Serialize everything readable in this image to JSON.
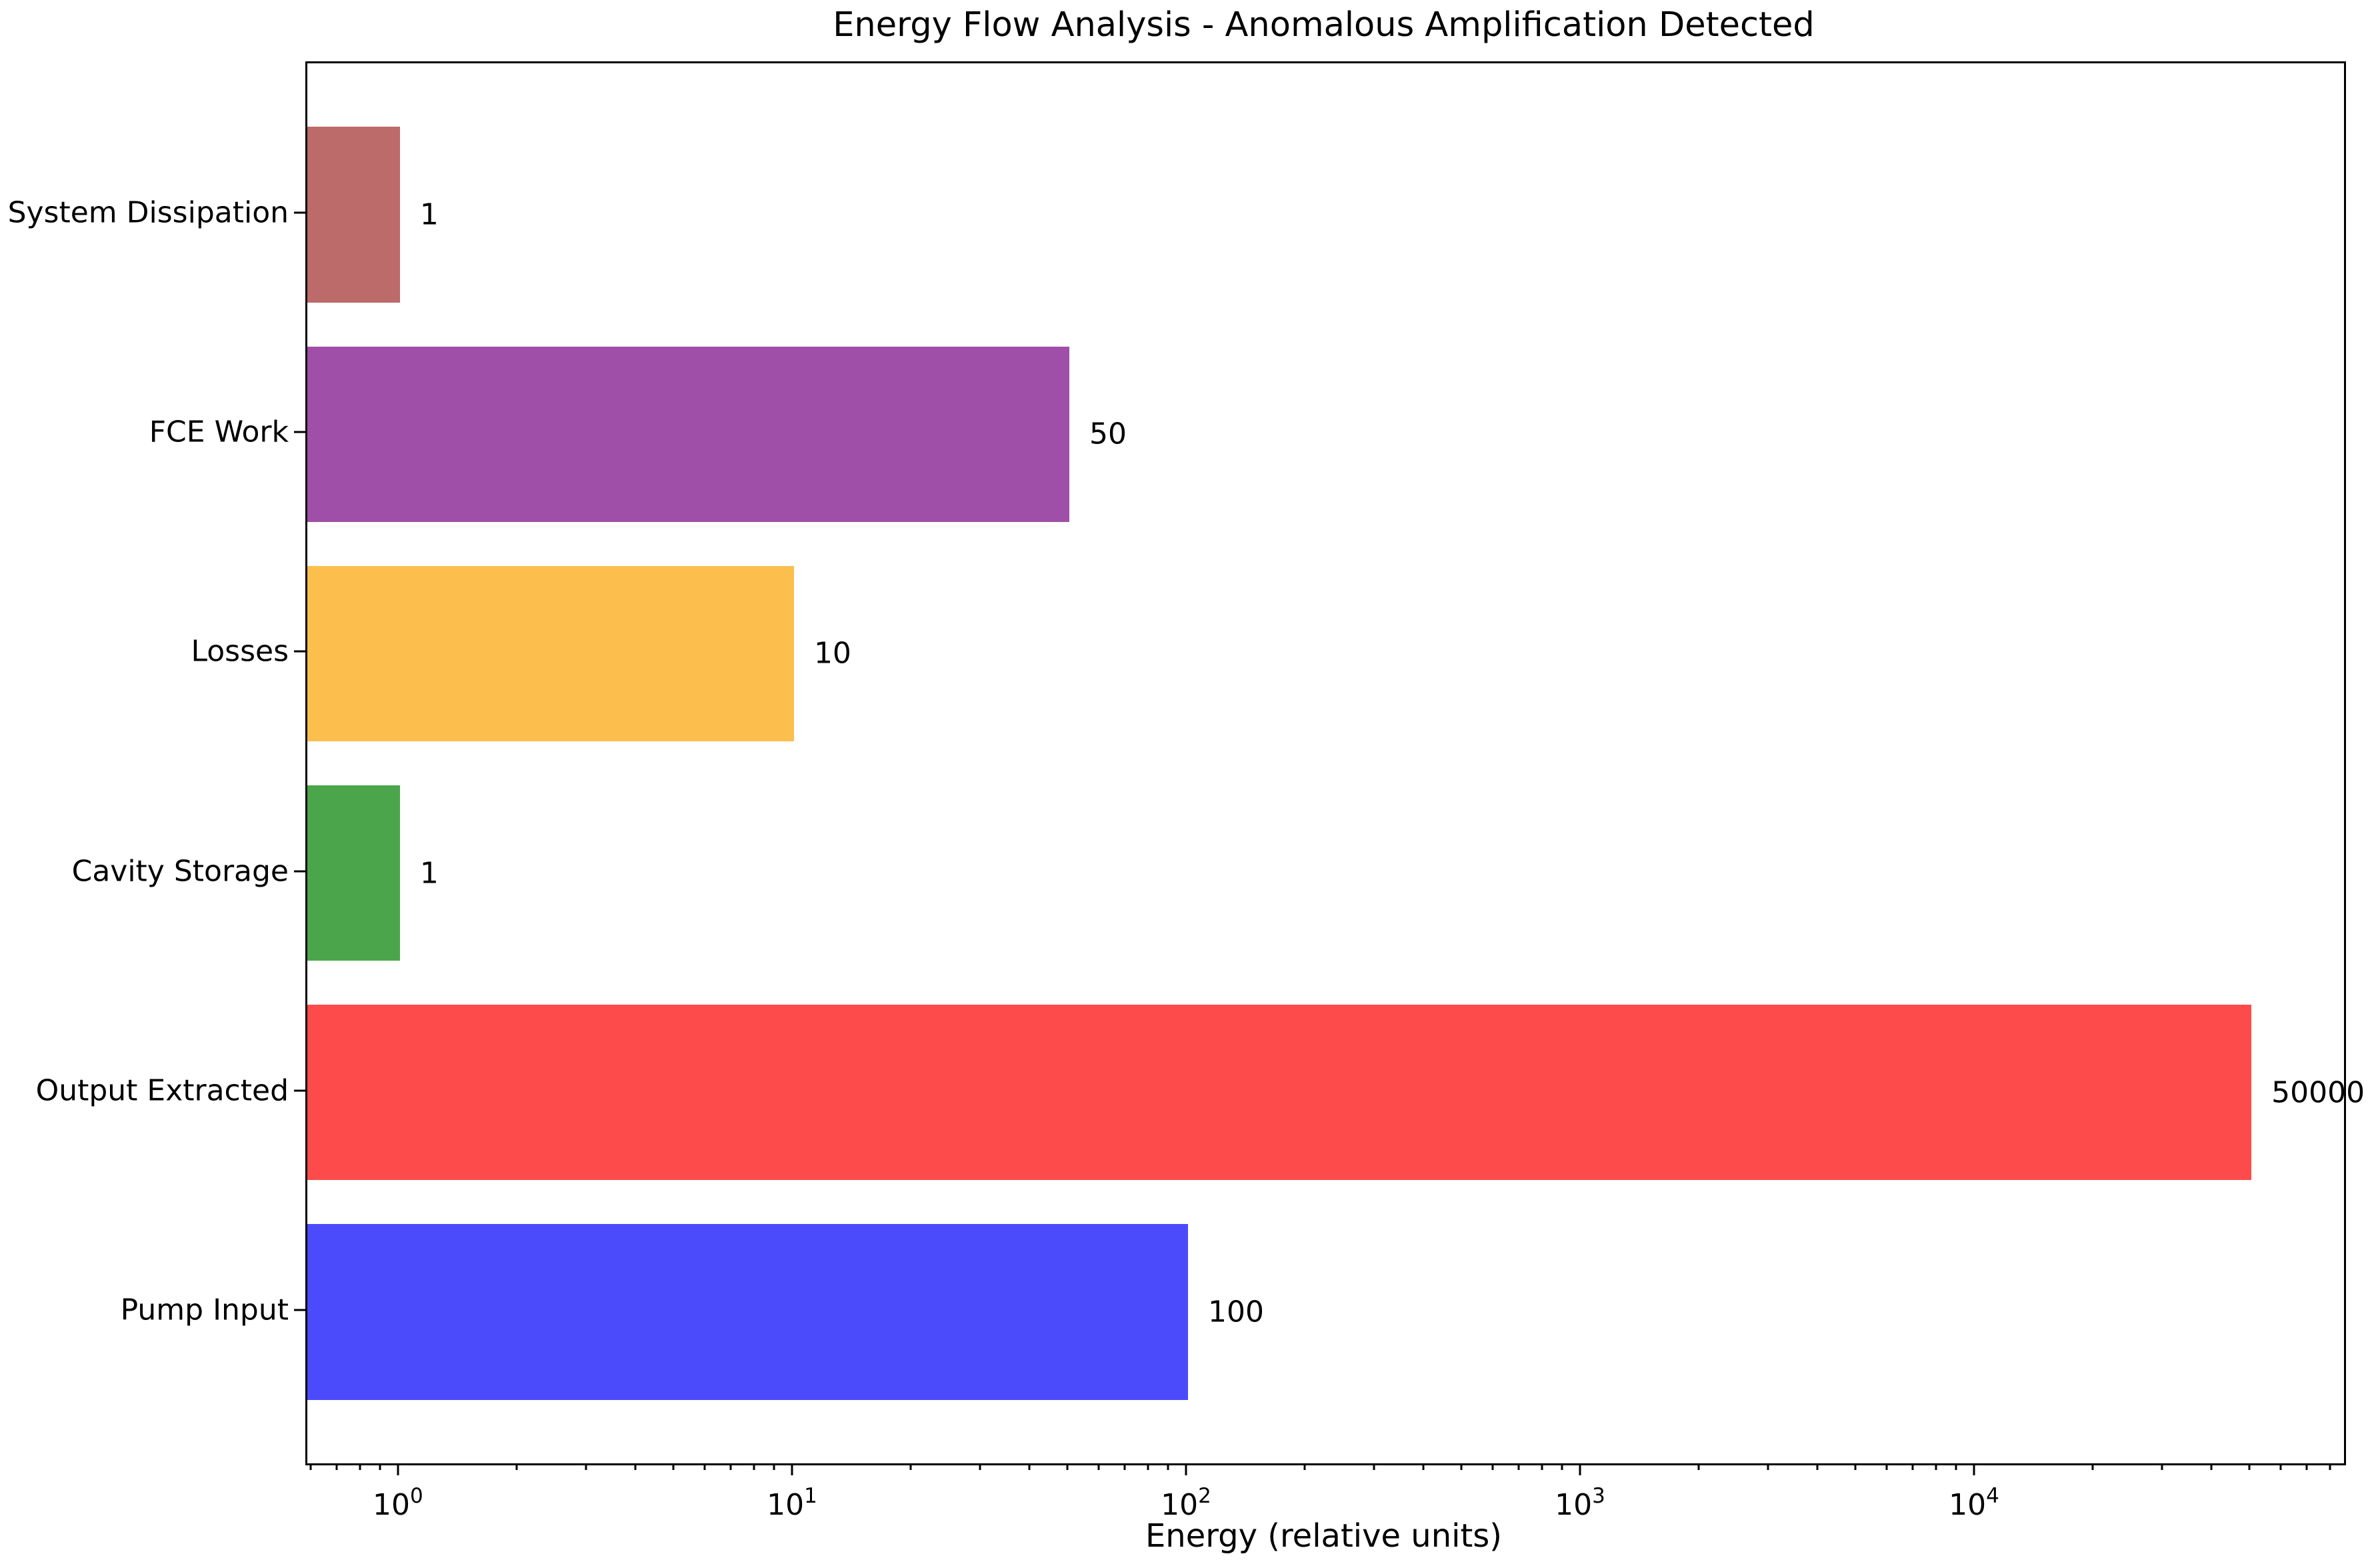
{
  "chart_data": {
    "type": "bar",
    "orientation": "horizontal",
    "log_x": true,
    "grid": false,
    "title": "Energy Flow Analysis - Anomalous Amplification Detected",
    "xlabel": "Energy (relative units)",
    "ylabel": "",
    "categories_bottom_to_top": [
      "Pump Input",
      "Output Extracted",
      "Cavity Storage",
      "Losses",
      "FCE Work",
      "System Dissipation"
    ],
    "values_bottom_to_top": [
      100,
      50000,
      1,
      10,
      50,
      1
    ],
    "value_labels_bottom_to_top": [
      "100",
      "50000",
      "1",
      "10",
      "50",
      "1"
    ],
    "bar_colors_bottom_to_top": [
      "#4b4bfb",
      "#fd4b4b",
      "#4ba64b",
      "#fcbf4e",
      "#a04fa8",
      "#bc6a6a"
    ],
    "xlim": [
      0.582,
      85900
    ],
    "ylim": [
      -0.69,
      5.69
    ],
    "bar_half_height_units": 0.4,
    "x_major_tick_values": [
      1,
      10,
      100,
      1000,
      10000
    ],
    "x_major_tick_base": "10",
    "x_major_tick_exponents": [
      "0",
      "1",
      "2",
      "3",
      "4"
    ],
    "x_minor_tick_mantissas": [
      2,
      3,
      4,
      5,
      6,
      7,
      8,
      9
    ],
    "axis_color": "#000000",
    "background_color": "#ffffff"
  }
}
